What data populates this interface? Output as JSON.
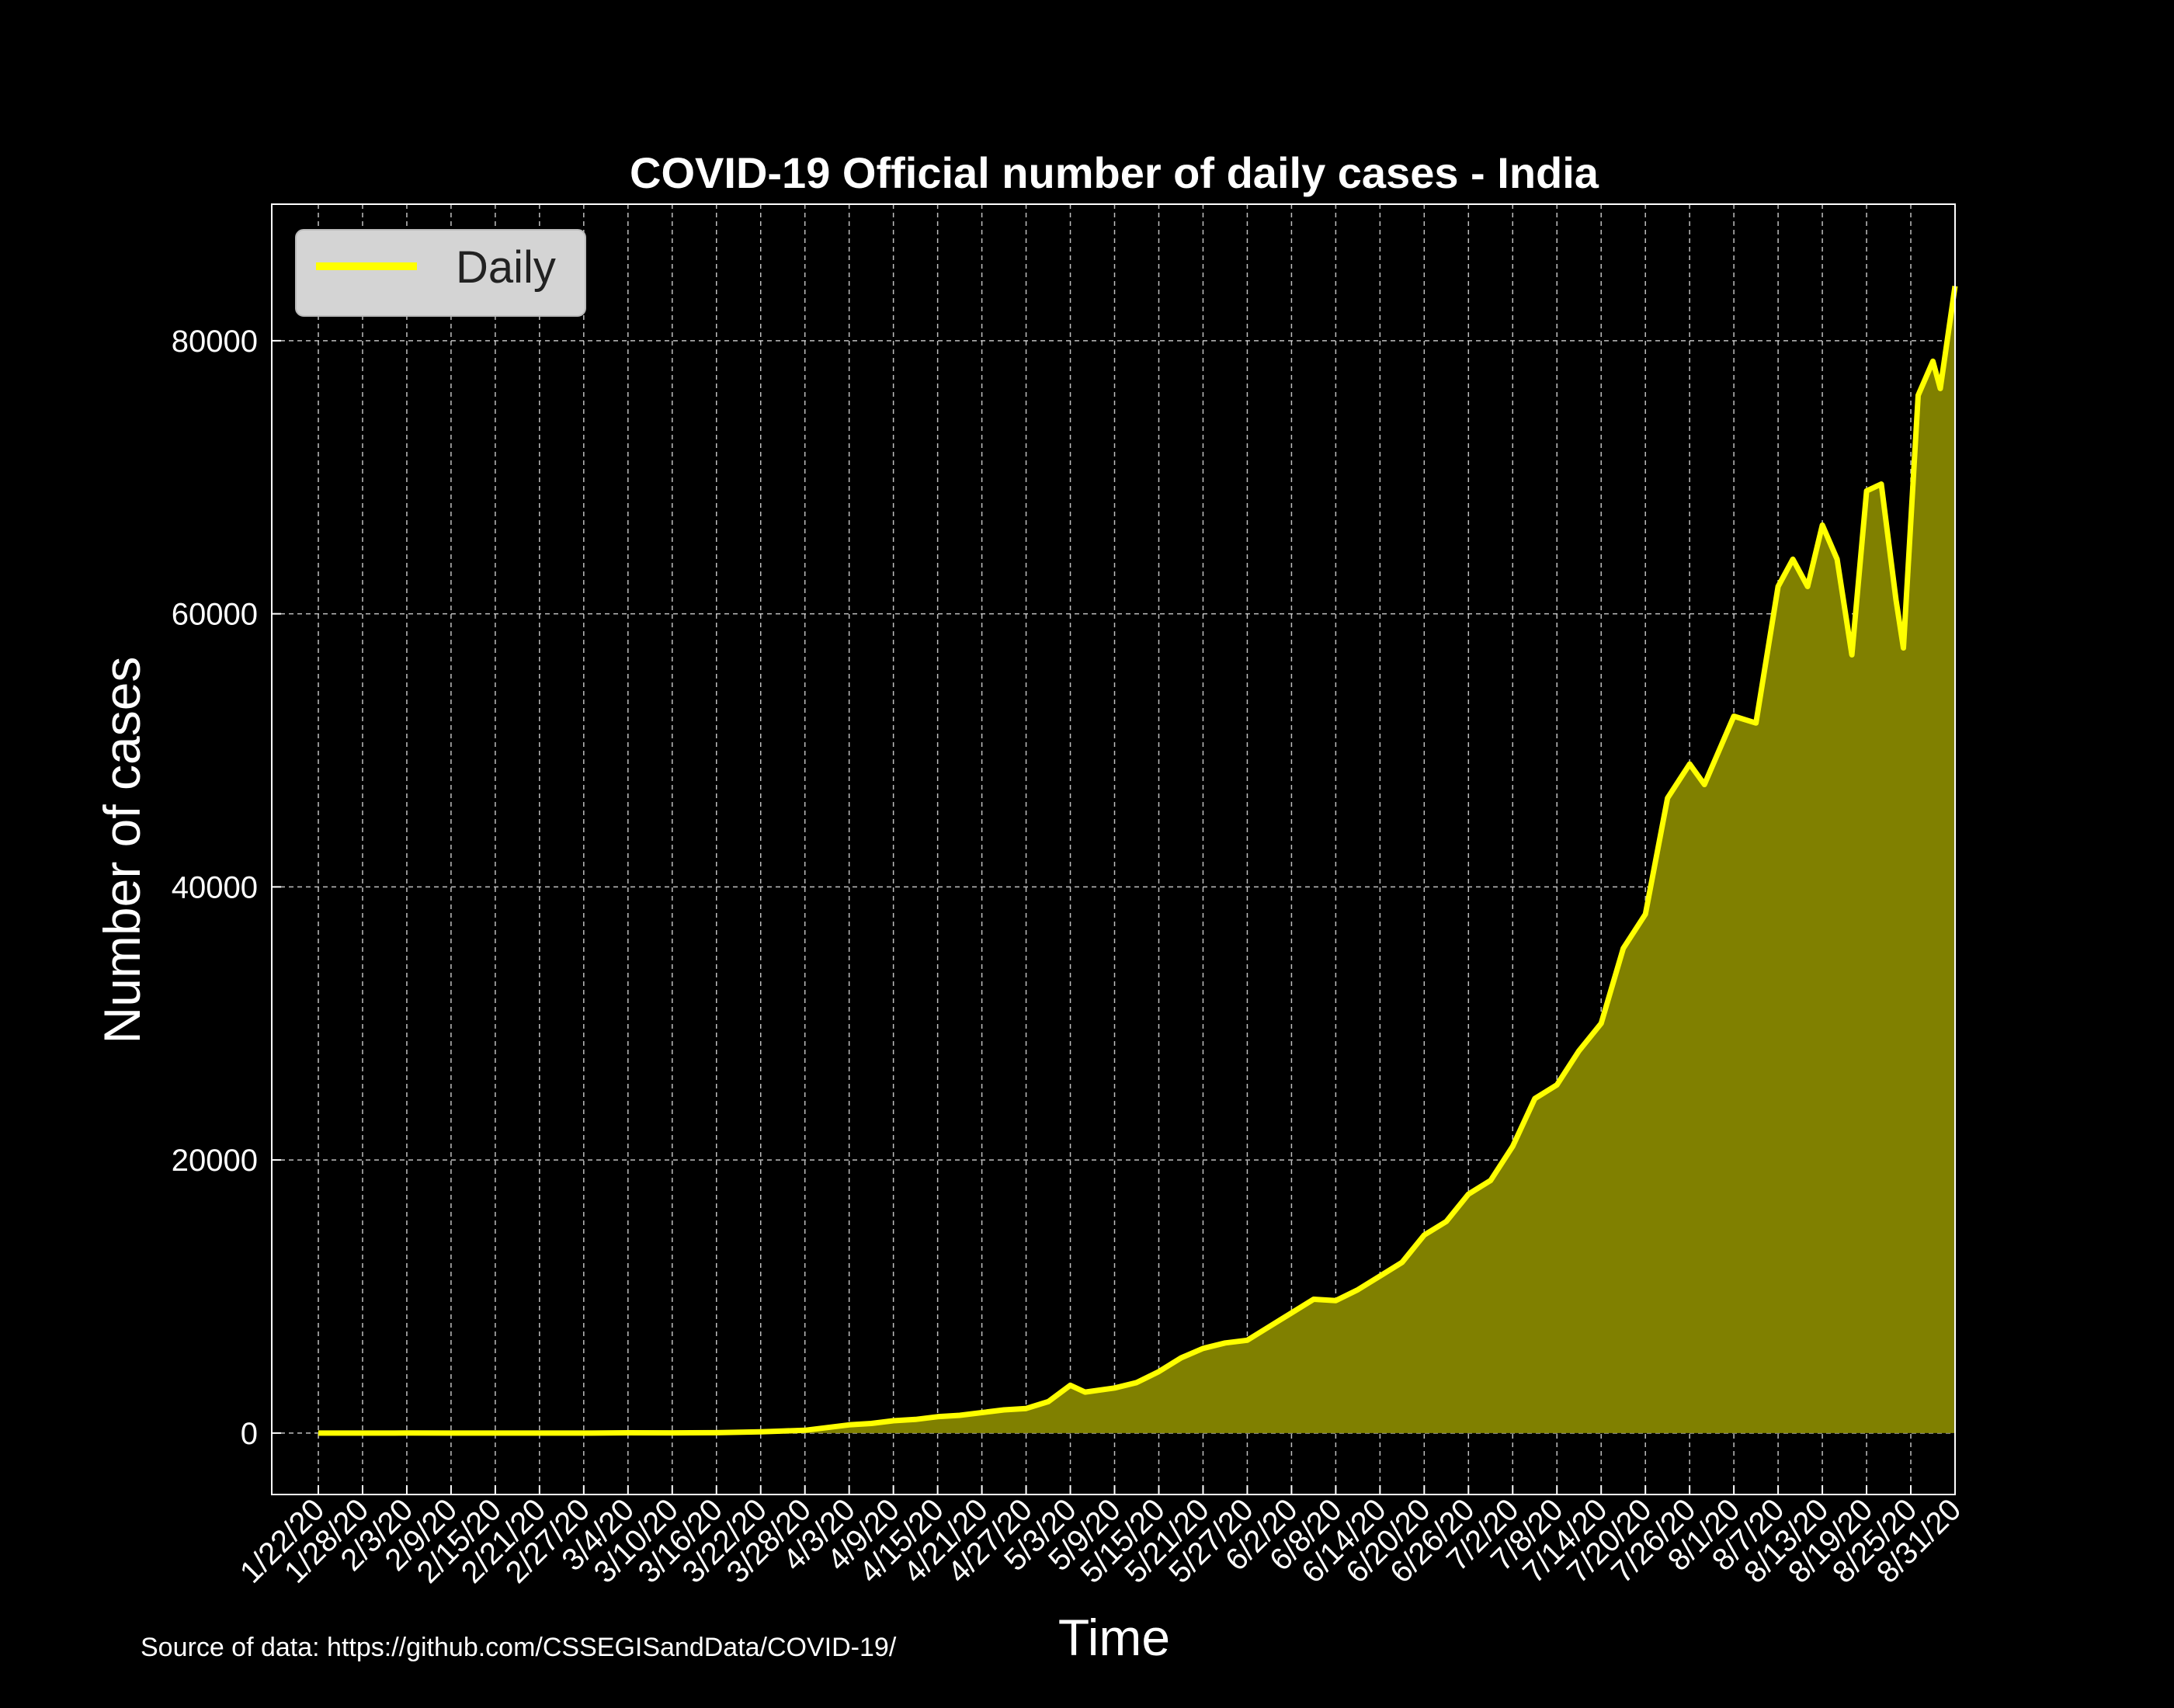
{
  "chart_data": {
    "type": "area",
    "title": "COVID-19 Official number of daily cases - India",
    "xlabel": "Time",
    "ylabel": "Number of cases",
    "source_note": "Source of data: https://github.com/CSSEGISandData/COVID-19/",
    "legend": {
      "placement": "top-left",
      "entries": [
        "Daily"
      ]
    },
    "grid": true,
    "x_start": "1/22/20",
    "x_end": "8/31/20",
    "xticks": [
      "1/22/20",
      "1/28/20",
      "2/3/20",
      "2/9/20",
      "2/15/20",
      "2/21/20",
      "2/27/20",
      "3/4/20",
      "3/10/20",
      "3/16/20",
      "3/22/20",
      "3/28/20",
      "4/3/20",
      "4/9/20",
      "4/15/20",
      "4/21/20",
      "4/27/20",
      "5/3/20",
      "5/9/20",
      "5/15/20",
      "5/21/20",
      "5/27/20",
      "6/2/20",
      "6/8/20",
      "6/14/20",
      "6/20/20",
      "6/26/20",
      "7/2/20",
      "7/8/20",
      "7/14/20",
      "7/20/20",
      "7/26/20",
      "8/1/20",
      "8/7/20",
      "8/13/20",
      "8/19/20",
      "8/25/20",
      "8/31/20"
    ],
    "yticks": [
      0,
      20000,
      40000,
      60000,
      80000
    ],
    "ylim": [
      -4500,
      90000
    ],
    "colors": {
      "line": "#ffff00",
      "fill": "#808000",
      "background": "#000000",
      "grid": "#ffffff",
      "text": "#ffffff"
    },
    "series": [
      {
        "name": "Daily",
        "x": [
          "1/22/20",
          "1/28/20",
          "2/3/20",
          "2/9/20",
          "2/15/20",
          "2/21/20",
          "2/27/20",
          "3/4/20",
          "3/10/20",
          "3/16/20",
          "3/22/20",
          "3/25/20",
          "3/28/20",
          "3/31/20",
          "4/3/20",
          "4/6/20",
          "4/9/20",
          "4/12/20",
          "4/15/20",
          "4/18/20",
          "4/21/20",
          "4/24/20",
          "4/27/20",
          "4/30/20",
          "5/3/20",
          "5/5/20",
          "5/9/20",
          "5/12/20",
          "5/15/20",
          "5/18/20",
          "5/21/20",
          "5/24/20",
          "5/27/20",
          "5/30/20",
          "6/2/20",
          "6/5/20",
          "6/8/20",
          "6/11/20",
          "6/14/20",
          "6/17/20",
          "6/20/20",
          "6/23/20",
          "6/26/20",
          "6/29/20",
          "7/2/20",
          "7/5/20",
          "7/8/20",
          "7/11/20",
          "7/14/20",
          "7/17/20",
          "7/20/20",
          "7/23/20",
          "7/26/20",
          "7/28/20",
          "8/1/20",
          "8/4/20",
          "8/7/20",
          "8/9/20",
          "8/11/20",
          "8/13/20",
          "8/15/20",
          "8/17/20",
          "8/19/20",
          "8/21/20",
          "8/23/20",
          "8/24/20",
          "8/26/20",
          "8/28/20",
          "8/29/20",
          "8/31/20"
        ],
        "values": [
          0,
          0,
          1,
          0,
          0,
          0,
          0,
          20,
          15,
          25,
          90,
          150,
          200,
          400,
          600,
          700,
          900,
          1000,
          1200,
          1300,
          1500,
          1700,
          1800,
          2300,
          3500,
          3000,
          3300,
          3700,
          4500,
          5500,
          6200,
          6600,
          6800,
          7800,
          8800,
          9800,
          9700,
          10500,
          11500,
          12500,
          14500,
          15500,
          17500,
          18500,
          21000,
          24500,
          25500,
          28000,
          30000,
          35500,
          38000,
          46500,
          49000,
          47500,
          52500,
          52000,
          62000,
          64000,
          62000,
          66500,
          64000,
          57000,
          69000,
          69500,
          61000,
          57500,
          76000,
          78500,
          76500,
          84000
        ]
      }
    ]
  }
}
